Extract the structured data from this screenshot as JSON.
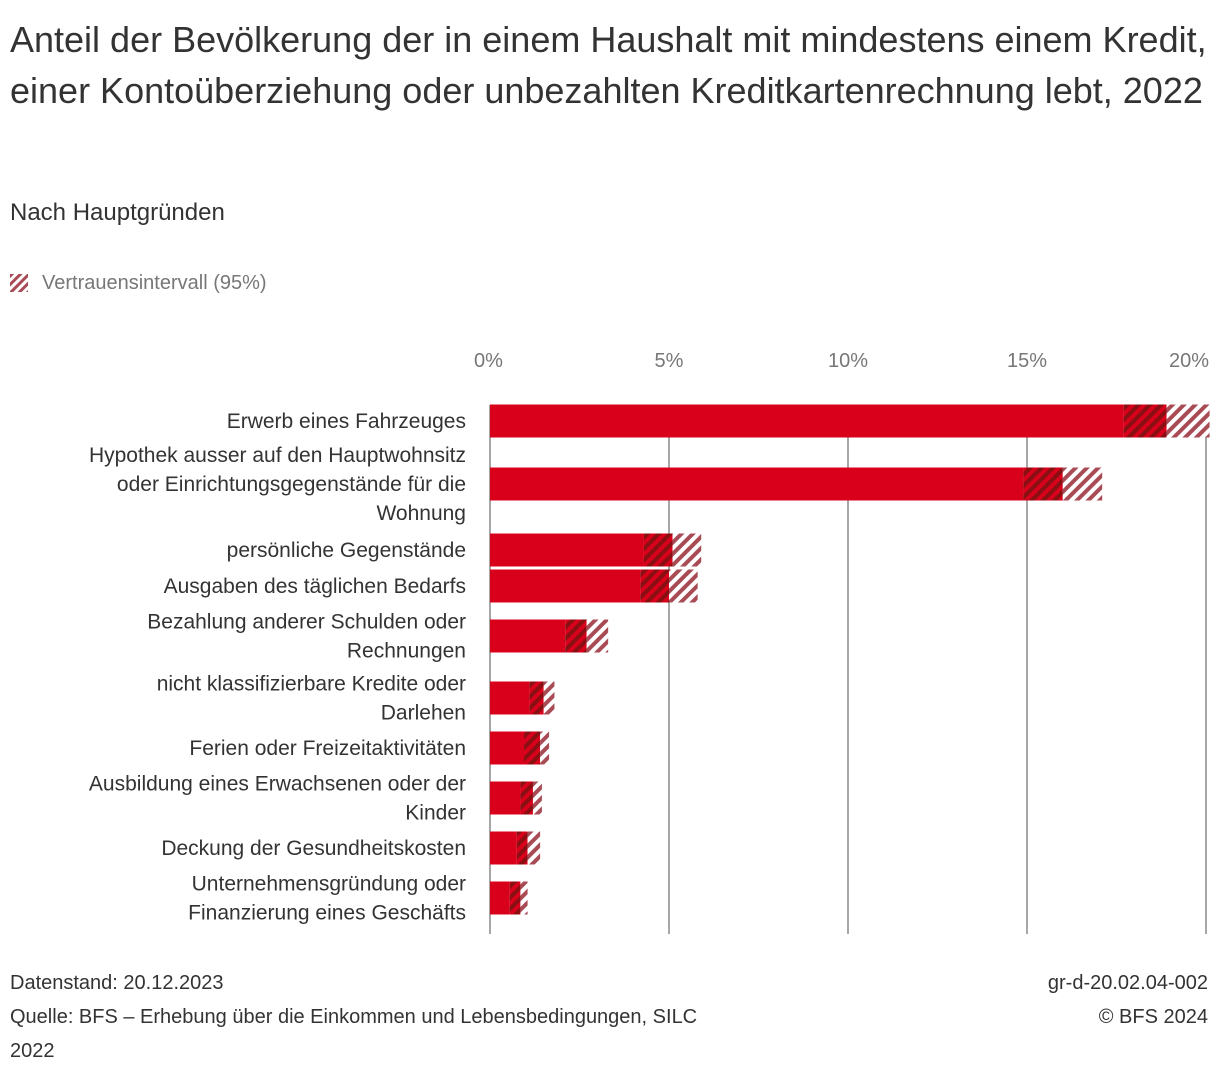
{
  "title": "Anteil der Bevölkerung der in einem Haushalt mit mindestens einem Kredit, einer Kontoüberziehung oder unbezahlten Kreditkartenrechnung lebt, 2022",
  "subtitle": "Nach Hauptgründen",
  "legend": {
    "label": "Vertrauensintervall (95%)"
  },
  "colors": {
    "bar": "#d8001b",
    "ci_dark": "#8a0f12",
    "ci_light": "#a84b55",
    "grid": "#8a8a8a",
    "text": "#333333"
  },
  "chart_data": {
    "type": "bar",
    "orientation": "horizontal",
    "unit": "%",
    "xlim": [
      0,
      20
    ],
    "xticks": [
      0,
      5,
      10,
      15,
      20
    ],
    "xtick_labels": [
      "0%",
      "5%",
      "10%",
      "15%",
      "20%"
    ],
    "grid": true,
    "categories": [
      "Erwerb eines Fahrzeuges",
      "Hypothek ausser auf den Hauptwohnsitz oder Einrichtungsgegenstände für die Wohnung",
      "persönliche Gegenstände",
      "Ausgaben des täglichen Bedarfs",
      "Bezahlung anderer Schulden oder Rechnungen",
      "nicht klassifizierbare Kredite oder Darlehen",
      "Ferien oder Freizeitaktivitäten",
      "Ausbildung eines Erwachsenen oder der Kinder",
      "Deckung der Gesundheitskosten",
      "Unternehmensgründung oder Finanzierung eines Geschäfts"
    ],
    "category_lines": [
      [
        "Erwerb eines Fahrzeuges"
      ],
      [
        "Hypothek ausser auf den Hauptwohnsitz",
        "oder Einrichtungsgegenstände für die",
        "Wohnung"
      ],
      [
        "persönliche Gegenstände"
      ],
      [
        "Ausgaben des täglichen Bedarfs"
      ],
      [
        "Bezahlung anderer Schulden oder",
        "Rechnungen"
      ],
      [
        "nicht klassifizierbare Kredite oder",
        "Darlehen"
      ],
      [
        "Ferien oder Freizeitaktivitäten"
      ],
      [
        "Ausbildung eines Erwachsenen oder der",
        "Kinder"
      ],
      [
        "Deckung der Gesundheitskosten"
      ],
      [
        "Unternehmensgründung oder",
        "Finanzierung eines Geschäfts"
      ]
    ],
    "values": [
      18.9,
      16.0,
      5.1,
      5.0,
      2.7,
      1.5,
      1.4,
      1.2,
      1.05,
      0.85
    ],
    "ci_lower": [
      17.7,
      14.9,
      4.3,
      4.2,
      2.1,
      1.1,
      0.95,
      0.85,
      0.75,
      0.55
    ],
    "ci_upper": [
      20.1,
      17.1,
      5.9,
      5.8,
      3.3,
      1.8,
      1.65,
      1.45,
      1.4,
      1.05
    ]
  },
  "footer": {
    "data_status": "Datenstand: 20.12.2023",
    "source_line1": "Quelle: BFS – Erhebung über die Einkommen und Lebensbedingungen, SILC",
    "source_line2": "2022",
    "chart_id": "gr-d-20.02.04-002",
    "copyright": "© BFS 2024"
  }
}
